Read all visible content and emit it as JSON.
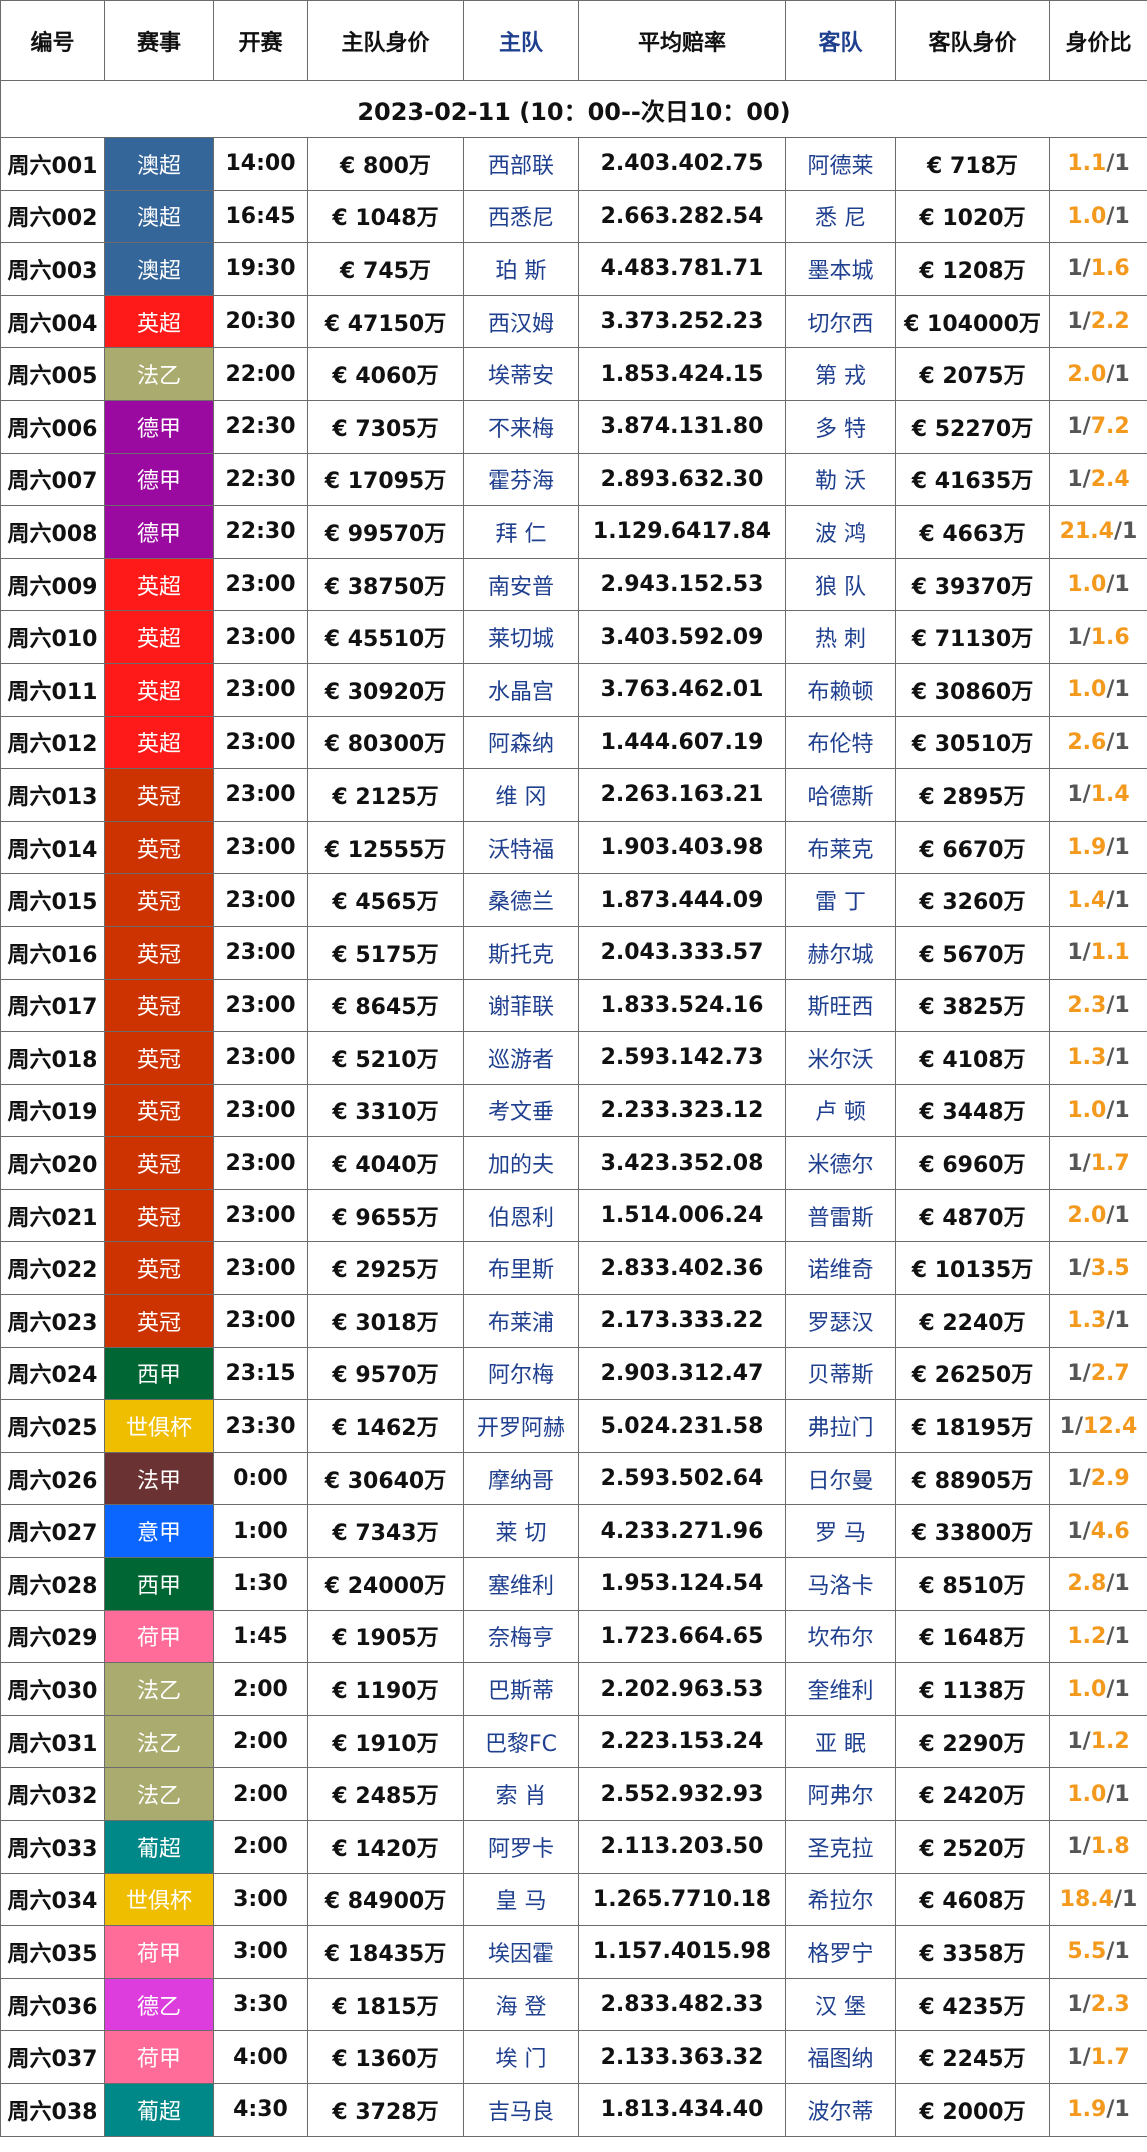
{
  "headers": [
    "编号",
    "赛事",
    "开赛",
    "主队身价",
    "主队",
    "平均赔率",
    "客队",
    "客队身价",
    "身价比"
  ],
  "date_range": "2023-02-11 (10：00--次日10：00)",
  "league_colors": {
    "澳超": "#34669a",
    "英超": "#ff1a1a",
    "法乙": "#aaab6e",
    "德甲": "#9a0aa0",
    "英冠": "#cc3300",
    "西甲": "#006633",
    "世俱杯": "#f0be00",
    "法甲": "#6a3232",
    "意甲": "#0a66ff",
    "荷甲": "#ff6c9a",
    "葡超": "#008888",
    "德乙": "#dd3ddd"
  },
  "ratio_colors": {
    "high": "#f39a1e",
    "low": "#555555"
  },
  "rows": [
    {
      "id": "周六001",
      "league": "澳超",
      "time": "14:00",
      "home_value": "€ 800万",
      "home": "西部联",
      "odds": "2.403.402.75",
      "away": "阿德莱",
      "away_value": "€ 718万",
      "ratio_left": "1.1",
      "ratio_right": "1",
      "left_high": true
    },
    {
      "id": "周六002",
      "league": "澳超",
      "time": "16:45",
      "home_value": "€ 1048万",
      "home": "西悉尼",
      "odds": "2.663.282.54",
      "away": "悉 尼",
      "away_value": "€ 1020万",
      "ratio_left": "1.0",
      "ratio_right": "1",
      "left_high": true
    },
    {
      "id": "周六003",
      "league": "澳超",
      "time": "19:30",
      "home_value": "€ 745万",
      "home": "珀 斯",
      "odds": "4.483.781.71",
      "away": "墨本城",
      "away_value": "€ 1208万",
      "ratio_left": "1",
      "ratio_right": "1.6",
      "left_high": false
    },
    {
      "id": "周六004",
      "league": "英超",
      "time": "20:30",
      "home_value": "€ 47150万",
      "home": "西汉姆",
      "odds": "3.373.252.23",
      "away": "切尔西",
      "away_value": "€ 104000万",
      "ratio_left": "1",
      "ratio_right": "2.2",
      "left_high": false
    },
    {
      "id": "周六005",
      "league": "法乙",
      "time": "22:00",
      "home_value": "€ 4060万",
      "home": "埃蒂安",
      "odds": "1.853.424.15",
      "away": "第 戎",
      "away_value": "€ 2075万",
      "ratio_left": "2.0",
      "ratio_right": "1",
      "left_high": true
    },
    {
      "id": "周六006",
      "league": "德甲",
      "time": "22:30",
      "home_value": "€ 7305万",
      "home": "不来梅",
      "odds": "3.874.131.80",
      "away": "多 特",
      "away_value": "€ 52270万",
      "ratio_left": "1",
      "ratio_right": "7.2",
      "left_high": false
    },
    {
      "id": "周六007",
      "league": "德甲",
      "time": "22:30",
      "home_value": "€ 17095万",
      "home": "霍芬海",
      "odds": "2.893.632.30",
      "away": "勒 沃",
      "away_value": "€ 41635万",
      "ratio_left": "1",
      "ratio_right": "2.4",
      "left_high": false
    },
    {
      "id": "周六008",
      "league": "德甲",
      "time": "22:30",
      "home_value": "€ 99570万",
      "home": "拜 仁",
      "odds": "1.129.6417.84",
      "away": "波 鸿",
      "away_value": "€ 4663万",
      "ratio_left": "21.4",
      "ratio_right": "1",
      "left_high": true
    },
    {
      "id": "周六009",
      "league": "英超",
      "time": "23:00",
      "home_value": "€ 38750万",
      "home": "南安普",
      "odds": "2.943.152.53",
      "away": "狼 队",
      "away_value": "€ 39370万",
      "ratio_left": "1.0",
      "ratio_right": "1",
      "left_high": true
    },
    {
      "id": "周六010",
      "league": "英超",
      "time": "23:00",
      "home_value": "€ 45510万",
      "home": "莱切城",
      "odds": "3.403.592.09",
      "away": "热 刺",
      "away_value": "€ 71130万",
      "ratio_left": "1",
      "ratio_right": "1.6",
      "left_high": false
    },
    {
      "id": "周六011",
      "league": "英超",
      "time": "23:00",
      "home_value": "€ 30920万",
      "home": "水晶宫",
      "odds": "3.763.462.01",
      "away": "布赖顿",
      "away_value": "€ 30860万",
      "ratio_left": "1.0",
      "ratio_right": "1",
      "left_high": true
    },
    {
      "id": "周六012",
      "league": "英超",
      "time": "23:00",
      "home_value": "€ 80300万",
      "home": "阿森纳",
      "odds": "1.444.607.19",
      "away": "布伦特",
      "away_value": "€ 30510万",
      "ratio_left": "2.6",
      "ratio_right": "1",
      "left_high": true
    },
    {
      "id": "周六013",
      "league": "英冠",
      "time": "23:00",
      "home_value": "€ 2125万",
      "home": "维 冈",
      "odds": "2.263.163.21",
      "away": "哈德斯",
      "away_value": "€ 2895万",
      "ratio_left": "1",
      "ratio_right": "1.4",
      "left_high": false
    },
    {
      "id": "周六014",
      "league": "英冠",
      "time": "23:00",
      "home_value": "€ 12555万",
      "home": "沃特福",
      "odds": "1.903.403.98",
      "away": "布莱克",
      "away_value": "€ 6670万",
      "ratio_left": "1.9",
      "ratio_right": "1",
      "left_high": true
    },
    {
      "id": "周六015",
      "league": "英冠",
      "time": "23:00",
      "home_value": "€ 4565万",
      "home": "桑德兰",
      "odds": "1.873.444.09",
      "away": "雷 丁",
      "away_value": "€ 3260万",
      "ratio_left": "1.4",
      "ratio_right": "1",
      "left_high": true
    },
    {
      "id": "周六016",
      "league": "英冠",
      "time": "23:00",
      "home_value": "€ 5175万",
      "home": "斯托克",
      "odds": "2.043.333.57",
      "away": "赫尔城",
      "away_value": "€ 5670万",
      "ratio_left": "1",
      "ratio_right": "1.1",
      "left_high": false
    },
    {
      "id": "周六017",
      "league": "英冠",
      "time": "23:00",
      "home_value": "€ 8645万",
      "home": "谢菲联",
      "odds": "1.833.524.16",
      "away": "斯旺西",
      "away_value": "€ 3825万",
      "ratio_left": "2.3",
      "ratio_right": "1",
      "left_high": true
    },
    {
      "id": "周六018",
      "league": "英冠",
      "time": "23:00",
      "home_value": "€ 5210万",
      "home": "巡游者",
      "odds": "2.593.142.73",
      "away": "米尔沃",
      "away_value": "€ 4108万",
      "ratio_left": "1.3",
      "ratio_right": "1",
      "left_high": true
    },
    {
      "id": "周六019",
      "league": "英冠",
      "time": "23:00",
      "home_value": "€ 3310万",
      "home": "考文垂",
      "odds": "2.233.323.12",
      "away": "卢 顿",
      "away_value": "€ 3448万",
      "ratio_left": "1.0",
      "ratio_right": "1",
      "left_high": true
    },
    {
      "id": "周六020",
      "league": "英冠",
      "time": "23:00",
      "home_value": "€ 4040万",
      "home": "加的夫",
      "odds": "3.423.352.08",
      "away": "米德尔",
      "away_value": "€ 6960万",
      "ratio_left": "1",
      "ratio_right": "1.7",
      "left_high": false
    },
    {
      "id": "周六021",
      "league": "英冠",
      "time": "23:00",
      "home_value": "€ 9655万",
      "home": "伯恩利",
      "odds": "1.514.006.24",
      "away": "普雷斯",
      "away_value": "€ 4870万",
      "ratio_left": "2.0",
      "ratio_right": "1",
      "left_high": true
    },
    {
      "id": "周六022",
      "league": "英冠",
      "time": "23:00",
      "home_value": "€ 2925万",
      "home": "布里斯",
      "odds": "2.833.402.36",
      "away": "诺维奇",
      "away_value": "€ 10135万",
      "ratio_left": "1",
      "ratio_right": "3.5",
      "left_high": false
    },
    {
      "id": "周六023",
      "league": "英冠",
      "time": "23:00",
      "home_value": "€ 3018万",
      "home": "布莱浦",
      "odds": "2.173.333.22",
      "away": "罗瑟汉",
      "away_value": "€ 2240万",
      "ratio_left": "1.3",
      "ratio_right": "1",
      "left_high": true
    },
    {
      "id": "周六024",
      "league": "西甲",
      "time": "23:15",
      "home_value": "€ 9570万",
      "home": "阿尔梅",
      "odds": "2.903.312.47",
      "away": "贝蒂斯",
      "away_value": "€ 26250万",
      "ratio_left": "1",
      "ratio_right": "2.7",
      "left_high": false
    },
    {
      "id": "周六025",
      "league": "世俱杯",
      "time": "23:30",
      "home_value": "€ 1462万",
      "home": "开罗阿赫",
      "odds": "5.024.231.58",
      "away": "弗拉门",
      "away_value": "€ 18195万",
      "ratio_left": "1",
      "ratio_right": "12.4",
      "left_high": false
    },
    {
      "id": "周六026",
      "league": "法甲",
      "time": "0:00",
      "home_value": "€ 30640万",
      "home": "摩纳哥",
      "odds": "2.593.502.64",
      "away": "日尔曼",
      "away_value": "€ 88905万",
      "ratio_left": "1",
      "ratio_right": "2.9",
      "left_high": false
    },
    {
      "id": "周六027",
      "league": "意甲",
      "time": "1:00",
      "home_value": "€ 7343万",
      "home": "莱 切",
      "odds": "4.233.271.96",
      "away": "罗 马",
      "away_value": "€ 33800万",
      "ratio_left": "1",
      "ratio_right": "4.6",
      "left_high": false
    },
    {
      "id": "周六028",
      "league": "西甲",
      "time": "1:30",
      "home_value": "€ 24000万",
      "home": "塞维利",
      "odds": "1.953.124.54",
      "away": "马洛卡",
      "away_value": "€ 8510万",
      "ratio_left": "2.8",
      "ratio_right": "1",
      "left_high": true
    },
    {
      "id": "周六029",
      "league": "荷甲",
      "time": "1:45",
      "home_value": "€ 1905万",
      "home": "奈梅亨",
      "odds": "1.723.664.65",
      "away": "坎布尔",
      "away_value": "€ 1648万",
      "ratio_left": "1.2",
      "ratio_right": "1",
      "left_high": true
    },
    {
      "id": "周六030",
      "league": "法乙",
      "time": "2:00",
      "home_value": "€ 1190万",
      "home": "巴斯蒂",
      "odds": "2.202.963.53",
      "away": "奎维利",
      "away_value": "€ 1138万",
      "ratio_left": "1.0",
      "ratio_right": "1",
      "left_high": true
    },
    {
      "id": "周六031",
      "league": "法乙",
      "time": "2:00",
      "home_value": "€ 1910万",
      "home": "巴黎FC",
      "odds": "2.223.153.24",
      "away": "亚 眠",
      "away_value": "€ 2290万",
      "ratio_left": "1",
      "ratio_right": "1.2",
      "left_high": false
    },
    {
      "id": "周六032",
      "league": "法乙",
      "time": "2:00",
      "home_value": "€ 2485万",
      "home": "索 肖",
      "odds": "2.552.932.93",
      "away": "阿弗尔",
      "away_value": "€ 2420万",
      "ratio_left": "1.0",
      "ratio_right": "1",
      "left_high": true
    },
    {
      "id": "周六033",
      "league": "葡超",
      "time": "2:00",
      "home_value": "€ 1420万",
      "home": "阿罗卡",
      "odds": "2.113.203.50",
      "away": "圣克拉",
      "away_value": "€ 2520万",
      "ratio_left": "1",
      "ratio_right": "1.8",
      "left_high": false
    },
    {
      "id": "周六034",
      "league": "世俱杯",
      "time": "3:00",
      "home_value": "€ 84900万",
      "home": "皇 马",
      "odds": "1.265.7710.18",
      "away": "希拉尔",
      "away_value": "€ 4608万",
      "ratio_left": "18.4",
      "ratio_right": "1",
      "left_high": true
    },
    {
      "id": "周六035",
      "league": "荷甲",
      "time": "3:00",
      "home_value": "€ 18435万",
      "home": "埃因霍",
      "odds": "1.157.4015.98",
      "away": "格罗宁",
      "away_value": "€ 3358万",
      "ratio_left": "5.5",
      "ratio_right": "1",
      "left_high": true
    },
    {
      "id": "周六036",
      "league": "德乙",
      "time": "3:30",
      "home_value": "€ 1815万",
      "home": "海 登",
      "odds": "2.833.482.33",
      "away": "汉 堡",
      "away_value": "€ 4235万",
      "ratio_left": "1",
      "ratio_right": "2.3",
      "left_high": false
    },
    {
      "id": "周六037",
      "league": "荷甲",
      "time": "4:00",
      "home_value": "€ 1360万",
      "home": "埃 门",
      "odds": "2.133.363.32",
      "away": "福图纳",
      "away_value": "€ 2245万",
      "ratio_left": "1",
      "ratio_right": "1.7",
      "left_high": false
    },
    {
      "id": "周六038",
      "league": "葡超",
      "time": "4:30",
      "home_value": "€ 3728万",
      "home": "吉马良",
      "odds": "1.813.434.40",
      "away": "波尔蒂",
      "away_value": "€ 2000万",
      "ratio_left": "1.9",
      "ratio_right": "1",
      "left_high": true
    }
  ]
}
